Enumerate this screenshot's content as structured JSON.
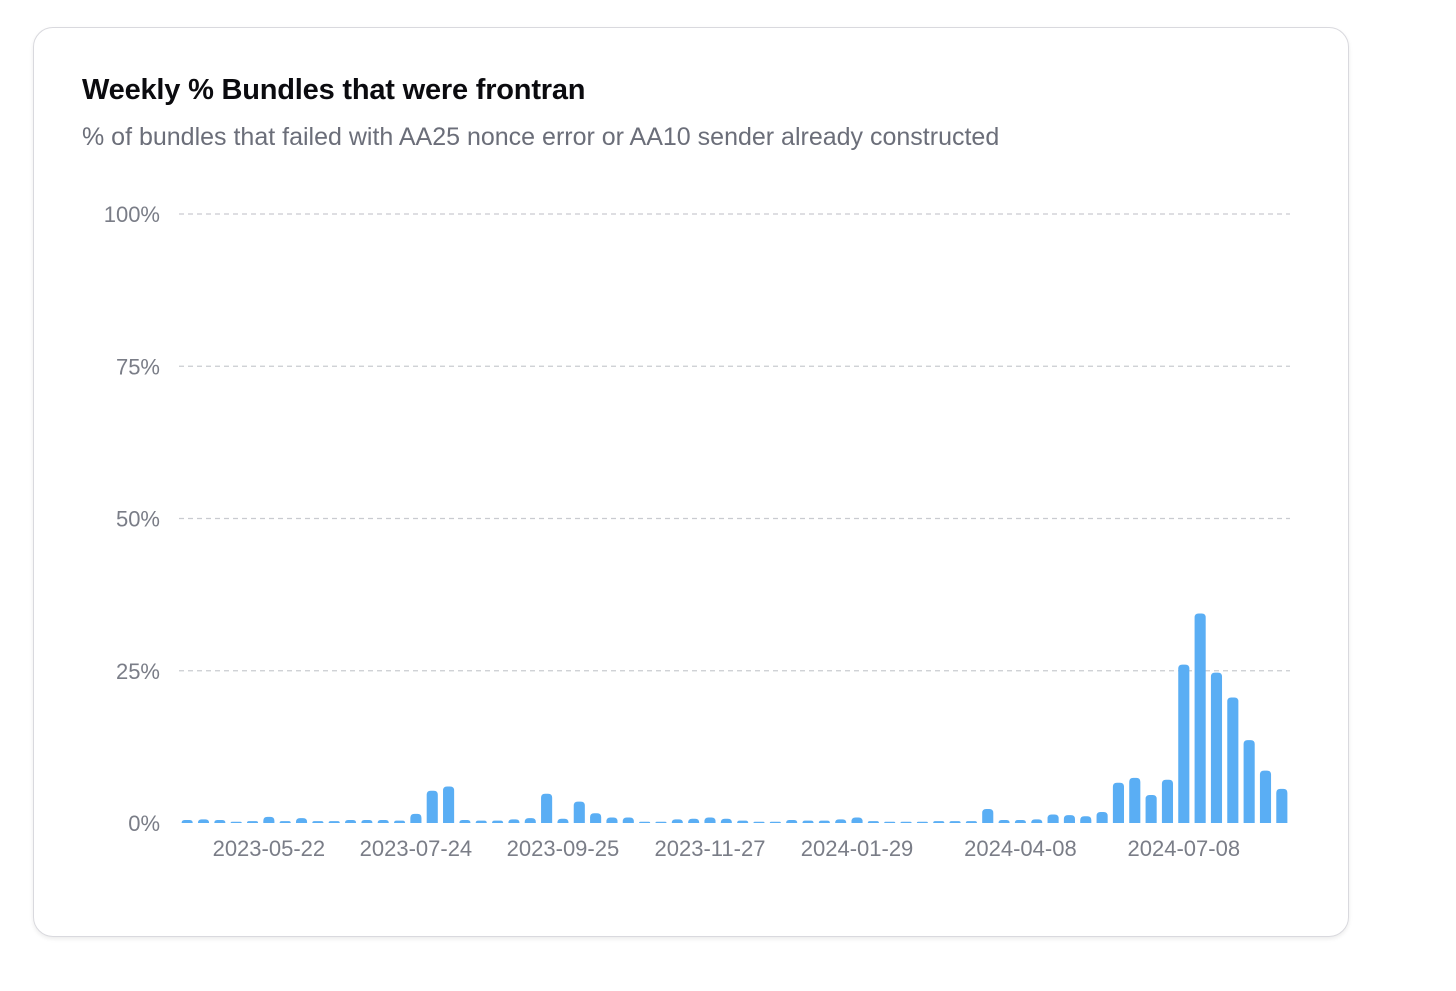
{
  "card": {
    "title": "Weekly % Bundles that were frontran",
    "subtitle": "% of bundles that failed with AA25 nonce error or AA10 sender already constructed"
  },
  "chart_data": {
    "type": "bar",
    "title": "Weekly % Bundles that were frontran",
    "subtitle": "% of bundles that failed with AA25 nonce error or AA10 sender already constructed",
    "xlabel": "",
    "ylabel": "",
    "ylim": [
      0,
      100
    ],
    "y_ticks": [
      0,
      25,
      50,
      75,
      100
    ],
    "y_tick_labels": [
      "0%",
      "25%",
      "50%",
      "75%",
      "100%"
    ],
    "x_tick_labels": [
      {
        "index": 5,
        "label": "2023-05-22"
      },
      {
        "index": 14,
        "label": "2023-07-24"
      },
      {
        "index": 23,
        "label": "2023-09-25"
      },
      {
        "index": 32,
        "label": "2023-11-27"
      },
      {
        "index": 41,
        "label": "2024-01-29"
      },
      {
        "index": 51,
        "label": "2024-04-08"
      },
      {
        "index": 61,
        "label": "2024-07-08"
      }
    ],
    "grid": true,
    "bar_color": "#5aaef4",
    "grid_color": "#c9cbd0",
    "values": [
      0.5,
      0.6,
      0.5,
      0.2,
      0.3,
      1.0,
      0.3,
      0.8,
      0.3,
      0.3,
      0.5,
      0.5,
      0.5,
      0.4,
      1.5,
      5.3,
      6.0,
      0.5,
      0.4,
      0.4,
      0.6,
      0.8,
      4.8,
      0.7,
      3.5,
      1.6,
      0.9,
      0.9,
      0.2,
      0.2,
      0.6,
      0.7,
      0.9,
      0.7,
      0.4,
      0.2,
      0.2,
      0.5,
      0.4,
      0.4,
      0.6,
      0.9,
      0.3,
      0.2,
      0.2,
      0.2,
      0.3,
      0.3,
      0.3,
      2.3,
      0.5,
      0.5,
      0.6,
      1.4,
      1.3,
      1.1,
      1.8,
      6.6,
      7.4,
      4.6,
      7.1,
      26.0,
      34.4,
      24.7,
      20.6,
      13.6,
      8.6,
      5.6
    ]
  }
}
